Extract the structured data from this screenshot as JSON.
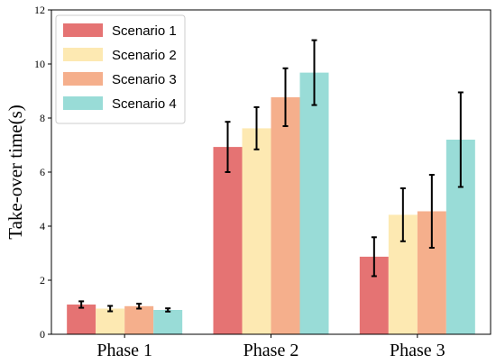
{
  "chart_data": {
    "type": "bar",
    "title": "",
    "xlabel": "",
    "ylabel": "Take-over time(s)",
    "categories": [
      "Phase 1",
      "Phase 2",
      "Phase 3"
    ],
    "ylim": [
      0,
      12
    ],
    "yticks": [
      "0",
      "2",
      "4",
      "6",
      "8",
      "10",
      "12"
    ],
    "grid": false,
    "legend_position": "top-left",
    "series": [
      {
        "name": "Scenario 1",
        "color": "#E57373",
        "values": [
          1.1,
          6.93,
          2.87
        ],
        "error": [
          0.12,
          0.93,
          0.72
        ]
      },
      {
        "name": "Scenario 2",
        "color": "#FDE9B2",
        "values": [
          0.95,
          7.62,
          4.42
        ],
        "error": [
          0.1,
          0.78,
          0.98
        ]
      },
      {
        "name": "Scenario 3",
        "color": "#F5AF8C",
        "values": [
          1.04,
          8.77,
          4.55
        ],
        "error": [
          0.09,
          1.07,
          1.35
        ]
      },
      {
        "name": "Scenario 4",
        "color": "#99DCD7",
        "values": [
          0.9,
          9.68,
          7.2
        ],
        "error": [
          0.06,
          1.2,
          1.75
        ]
      }
    ]
  }
}
